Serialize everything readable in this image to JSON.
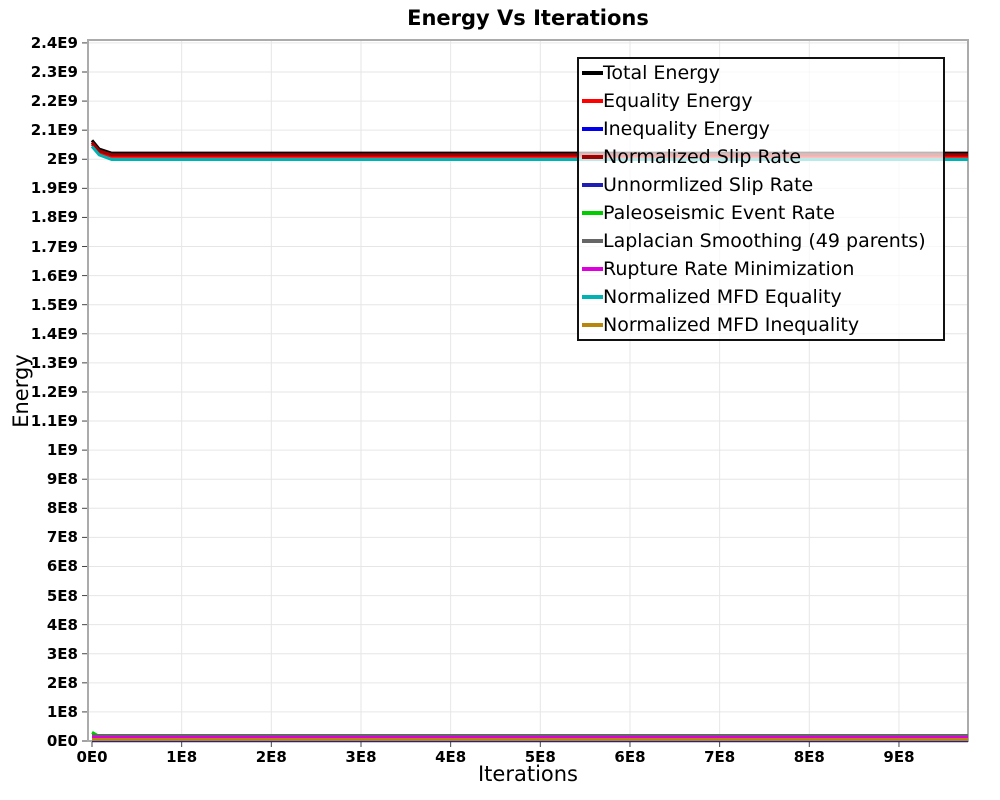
{
  "chart_data": {
    "type": "line",
    "title": "Energy Vs Iterations",
    "xlabel": "Iterations",
    "ylabel": "Energy",
    "xlim": [
      0,
      977000000
    ],
    "ylim": [
      0,
      2410000000
    ],
    "grid": true,
    "legend_position": "inner-top-right",
    "x_tick_values": [
      0,
      100000000.0,
      200000000.0,
      300000000.0,
      400000000.0,
      500000000.0,
      600000000.0,
      700000000.0,
      800000000.0,
      900000000.0
    ],
    "x_tick_labels": [
      "0E0",
      "1E8",
      "2E8",
      "3E8",
      "4E8",
      "5E8",
      "6E8",
      "7E8",
      "8E8",
      "9E8"
    ],
    "y_tick_values": [
      0,
      100000000.0,
      200000000.0,
      300000000.0,
      400000000.0,
      500000000.0,
      600000000.0,
      700000000.0,
      800000000.0,
      900000000.0,
      1000000000.0,
      1100000000.0,
      1200000000.0,
      1300000000.0,
      1400000000.0,
      1500000000.0,
      1600000000.0,
      1700000000.0,
      1800000000.0,
      1900000000.0,
      2000000000.0,
      2100000000.0,
      2200000000.0,
      2300000000.0,
      2400000000.0
    ],
    "y_tick_labels": [
      "0E0",
      "1E8",
      "2E8",
      "3E8",
      "4E8",
      "5E8",
      "6E8",
      "7E8",
      "8E8",
      "9E8",
      "1E9",
      "1.1E9",
      "1.2E9",
      "1.3E9",
      "1.4E9",
      "1.5E9",
      "1.6E9",
      "1.7E9",
      "1.8E9",
      "1.9E9",
      "2E9",
      "2.1E9",
      "2.2E9",
      "2.3E9",
      "2.4E9"
    ],
    "series": [
      {
        "name": "Total Energy",
        "color": "#000000",
        "x": [
          0,
          8000000.0,
          22000000.0,
          977000000.0
        ],
        "y": [
          2065000000.0,
          2035000000.0,
          2021000000.0,
          2021000000.0
        ]
      },
      {
        "name": "Equality Energy",
        "color": "#ff0000",
        "x": [
          0,
          8000000.0,
          22000000.0,
          977000000.0
        ],
        "y": [
          2052000000.0,
          2024000000.0,
          2010000000.0,
          2010000000.0
        ]
      },
      {
        "name": "Inequality Energy",
        "color": "#0000ee",
        "x": [
          0,
          977000000.0
        ],
        "y": [
          2000000.0,
          2000000.0
        ]
      },
      {
        "name": "Normalized Slip Rate",
        "color": "#a00000",
        "x": [
          0,
          8000000.0,
          22000000.0,
          977000000.0
        ],
        "y": [
          2058000000.0,
          2029000000.0,
          2015500000.0,
          2015500000.0
        ]
      },
      {
        "name": "Unnormlized Slip Rate",
        "color": "#1e1eb4",
        "x": [
          0,
          977000000.0
        ],
        "y": [
          1000000.0,
          1000000.0
        ]
      },
      {
        "name": "Paleoseismic Event Rate",
        "color": "#00cc00",
        "x": [
          0,
          10000000.0,
          25000000.0,
          977000000.0
        ],
        "y": [
          30000000.0,
          12000000.0,
          5000000.0,
          5000000.0
        ]
      },
      {
        "name": "Laplacian Smoothing (49 parents)",
        "color": "#666666",
        "x": [
          0,
          977000000.0
        ],
        "y": [
          19000000.0,
          19000000.0
        ]
      },
      {
        "name": "Rupture Rate Minimization",
        "color": "#dd00dd",
        "x": [
          0,
          977000000.0
        ],
        "y": [
          12000000.0,
          12000000.0
        ]
      },
      {
        "name": "Normalized MFD Equality",
        "color": "#00b2b2",
        "x": [
          0,
          8000000.0,
          22000000.0,
          977000000.0
        ],
        "y": [
          2044000000.0,
          2015000000.0,
          1999000000.0,
          1999000000.0
        ]
      },
      {
        "name": "Normalized MFD Inequality",
        "color": "#b8860b",
        "x": [
          0,
          977000000.0
        ],
        "y": [
          5000000.0,
          5000000.0
        ]
      }
    ],
    "colors": {
      "grid": "#e6e6e6",
      "plot_border": "#ababab",
      "tick_mark": "#444444",
      "legend_border": "#111111"
    }
  }
}
